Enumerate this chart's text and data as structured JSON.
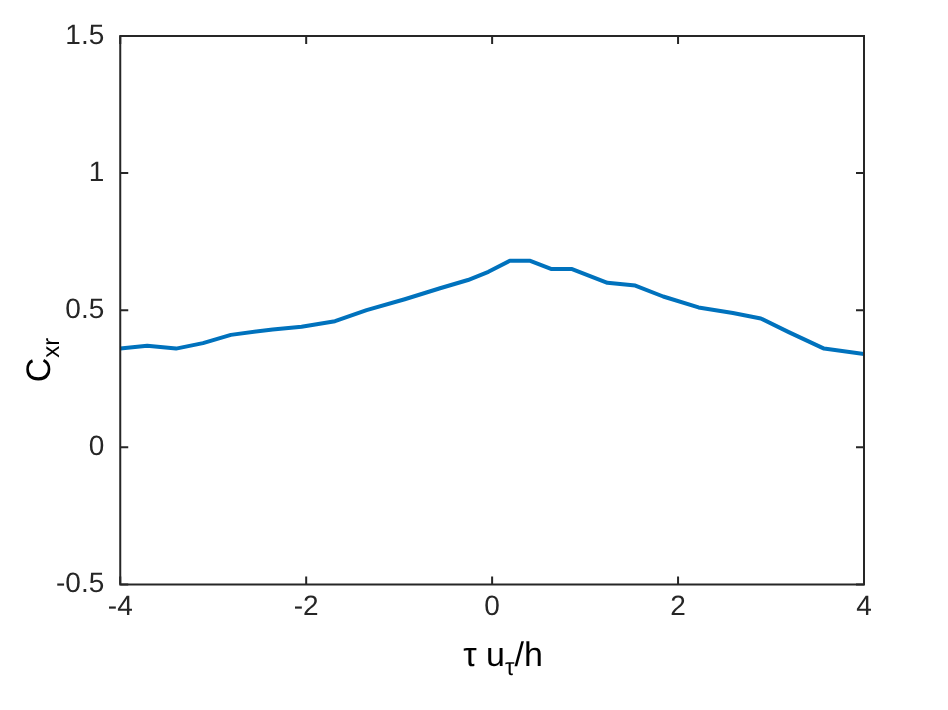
{
  "chart_data": {
    "type": "line",
    "xlabel": "τ u$_{τ}$/h",
    "ylabel": "C$_{xr}$",
    "x": [
      -4,
      -3.71,
      -3.4,
      -3.11,
      -2.81,
      -2.36,
      -2.05,
      -1.69,
      -1.35,
      -0.94,
      -0.56,
      -0.26,
      -0.04,
      0.19,
      0.41,
      0.64,
      0.86,
      1.24,
      1.54,
      1.84,
      2.22,
      2.59,
      2.89,
      3.19,
      3.57,
      4
    ],
    "series": [
      {
        "color": "#0072bd",
        "values": [
          0.36,
          0.37,
          0.36,
          0.38,
          0.41,
          0.43,
          0.44,
          0.46,
          0.5,
          0.54,
          0.58,
          0.61,
          0.64,
          0.68,
          0.68,
          0.65,
          0.65,
          0.6,
          0.59,
          0.55,
          0.51,
          0.49,
          0.47,
          0.42,
          0.36,
          0.34
        ]
      }
    ],
    "xlim": [
      -4,
      4
    ],
    "xticks": [
      -4,
      -2,
      0,
      2,
      4
    ],
    "ylim": [
      -0.5,
      1.5
    ],
    "yticks": [
      -0.5,
      0,
      0.5,
      1,
      1.5
    ],
    "grid": false,
    "legend": false,
    "marker": "none",
    "line_style": "solid"
  }
}
